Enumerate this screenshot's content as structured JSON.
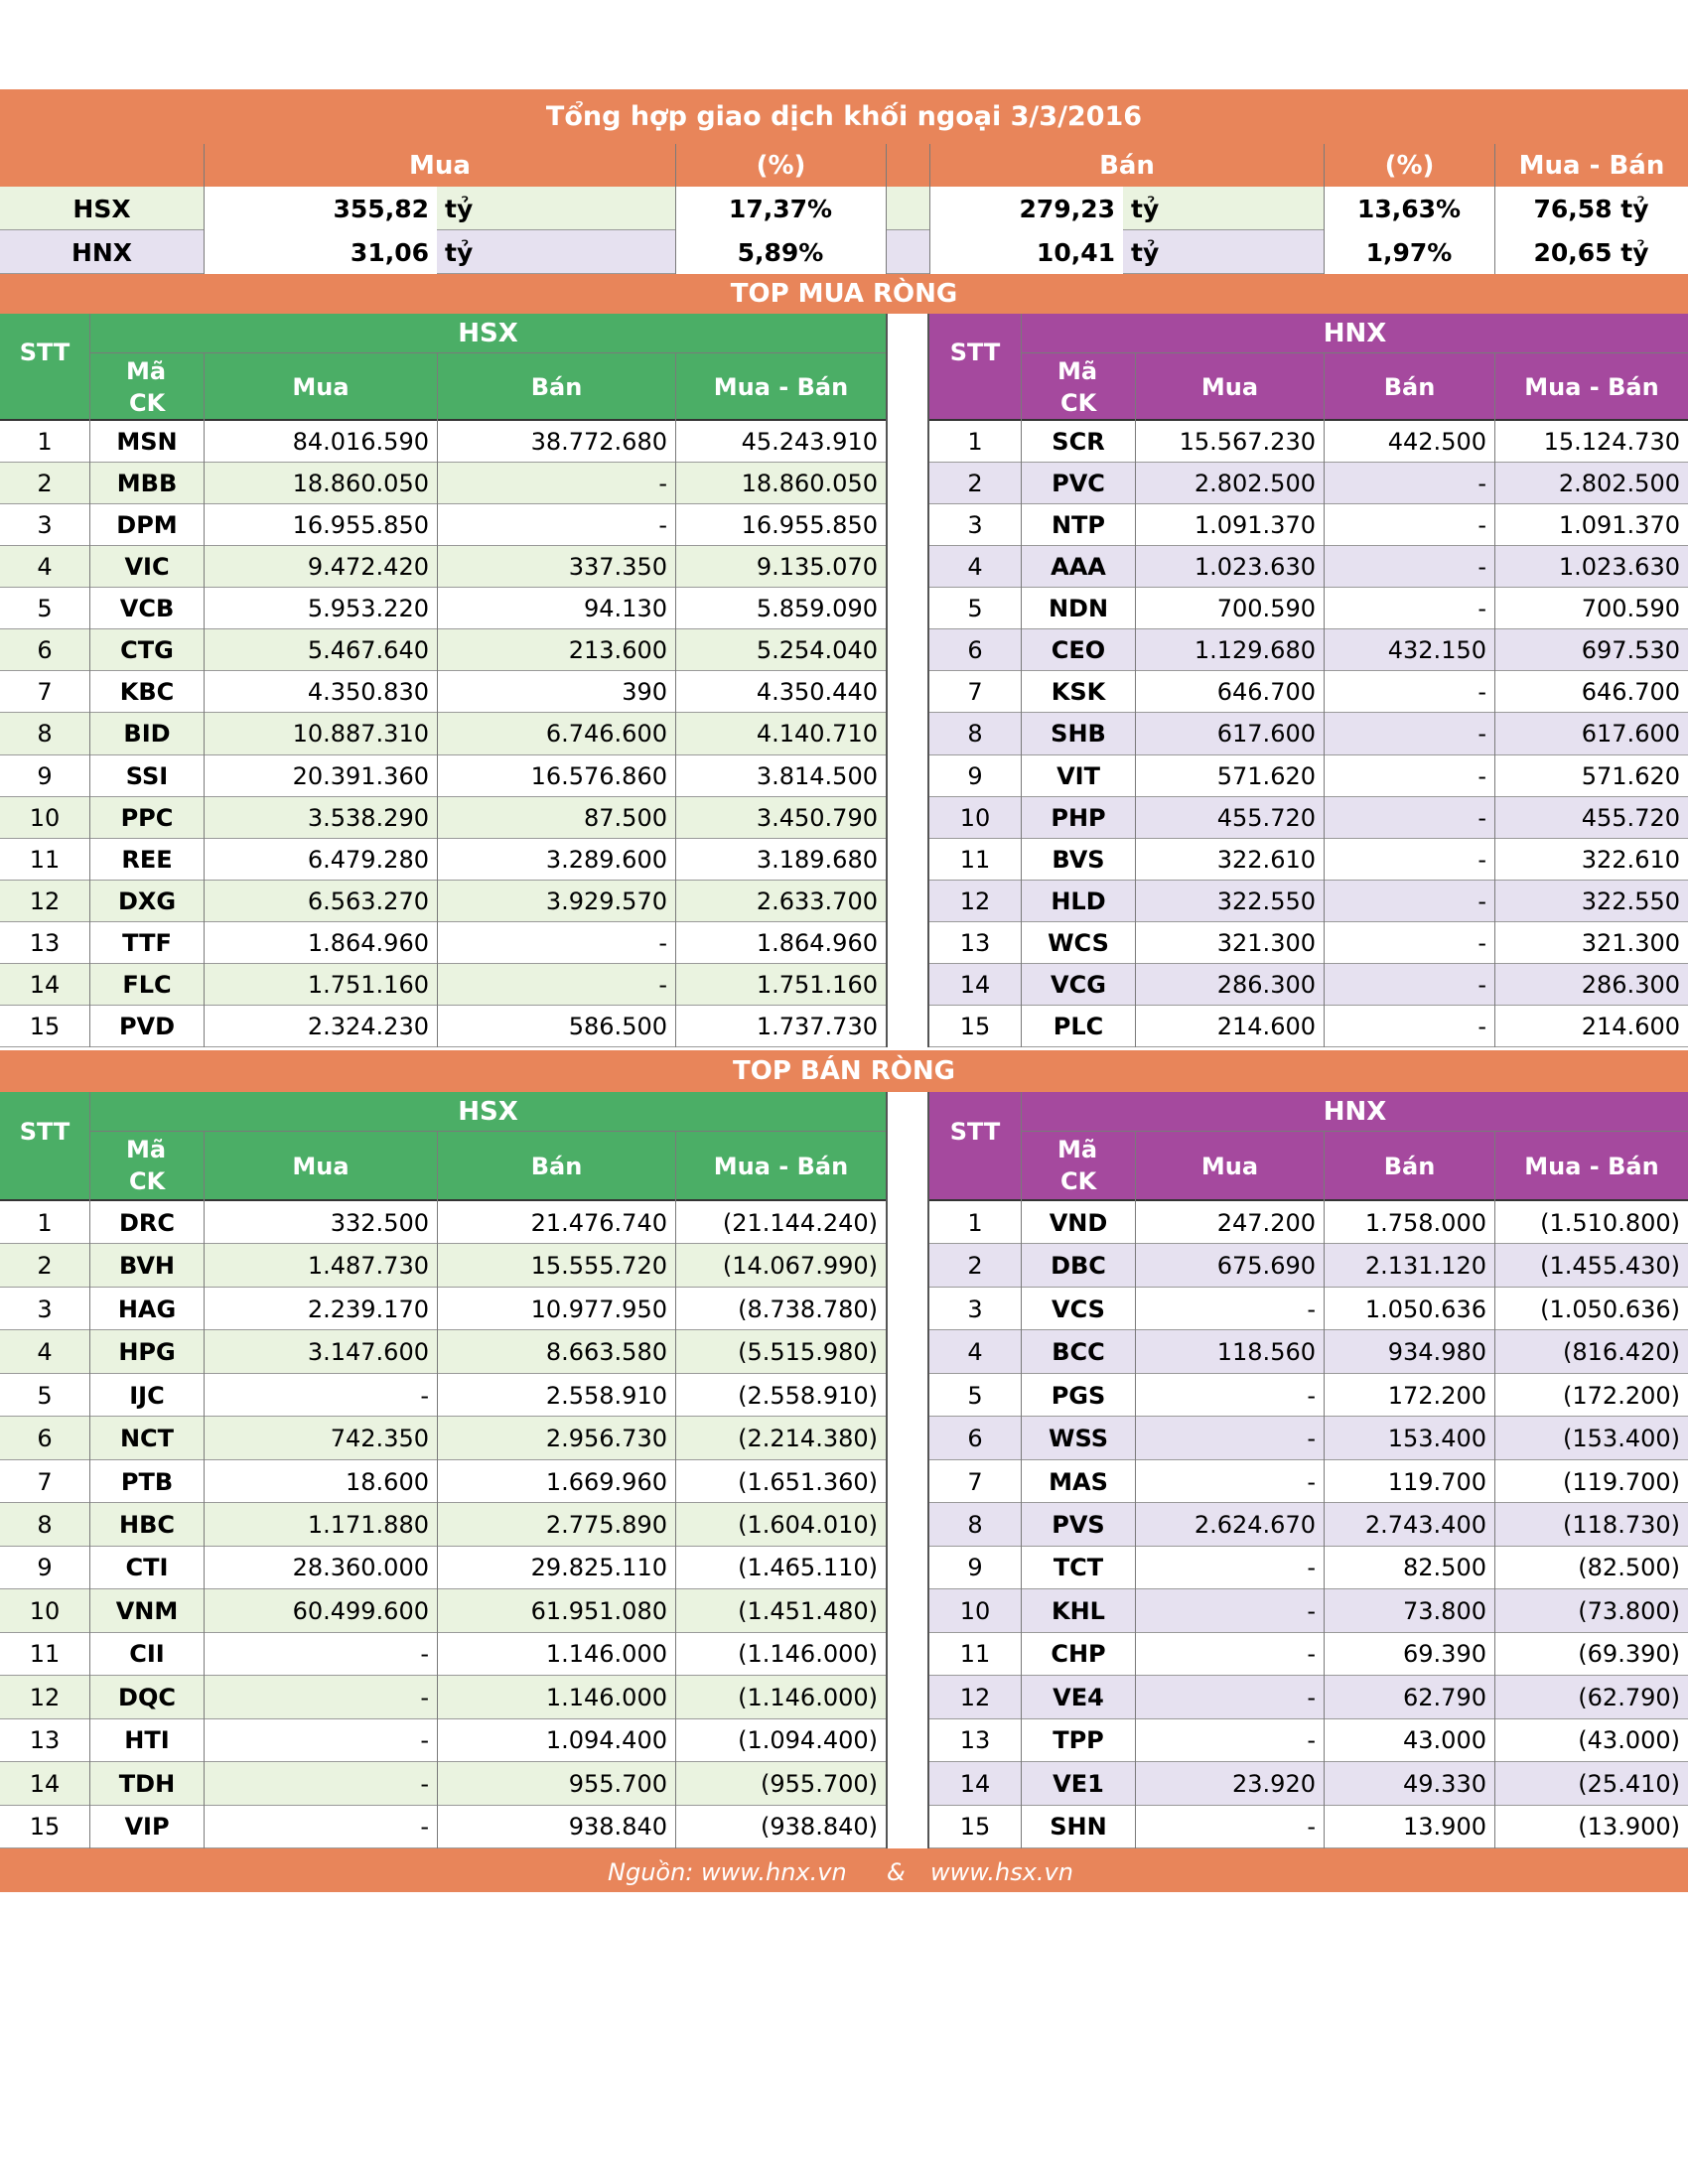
{
  "title": "Tổng hợp giao dịch khối ngoại 3/3/2016",
  "summary": {
    "headers": {
      "mua": "Mua",
      "pct1": "(%)",
      "ban": "Bán",
      "pct2": "(%)",
      "net": "Mua - Bán"
    },
    "unit": "tỷ",
    "rows": [
      {
        "exchange": "HSX",
        "mua": "355,82",
        "mua_pct": "17,37%",
        "ban": "279,23",
        "ban_pct": "13,63%",
        "net": "76,58 tỷ"
      },
      {
        "exchange": "HNX",
        "mua": "31,06",
        "mua_pct": "5,89%",
        "ban": "10,41",
        "ban_pct": "1,97%",
        "net": "20,65 tỷ"
      }
    ]
  },
  "columns": {
    "stt": "STT",
    "ma1": "Mã",
    "ma2": "CK",
    "mua": "Mua",
    "ban": "Bán",
    "net": "Mua - Bán",
    "hsx": "HSX",
    "hnx": "HNX"
  },
  "top_buy": {
    "title": "TOP MUA RÒNG",
    "hsx": [
      [
        "1",
        "MSN",
        "84.016.590",
        "38.772.680",
        "45.243.910"
      ],
      [
        "2",
        "MBB",
        "18.860.050",
        "-",
        "18.860.050"
      ],
      [
        "3",
        "DPM",
        "16.955.850",
        "-",
        "16.955.850"
      ],
      [
        "4",
        "VIC",
        "9.472.420",
        "337.350",
        "9.135.070"
      ],
      [
        "5",
        "VCB",
        "5.953.220",
        "94.130",
        "5.859.090"
      ],
      [
        "6",
        "CTG",
        "5.467.640",
        "213.600",
        "5.254.040"
      ],
      [
        "7",
        "KBC",
        "4.350.830",
        "390",
        "4.350.440"
      ],
      [
        "8",
        "BID",
        "10.887.310",
        "6.746.600",
        "4.140.710"
      ],
      [
        "9",
        "SSI",
        "20.391.360",
        "16.576.860",
        "3.814.500"
      ],
      [
        "10",
        "PPC",
        "3.538.290",
        "87.500",
        "3.450.790"
      ],
      [
        "11",
        "REE",
        "6.479.280",
        "3.289.600",
        "3.189.680"
      ],
      [
        "12",
        "DXG",
        "6.563.270",
        "3.929.570",
        "2.633.700"
      ],
      [
        "13",
        "TTF",
        "1.864.960",
        "-",
        "1.864.960"
      ],
      [
        "14",
        "FLC",
        "1.751.160",
        "-",
        "1.751.160"
      ],
      [
        "15",
        "PVD",
        "2.324.230",
        "586.500",
        "1.737.730"
      ]
    ],
    "hnx": [
      [
        "1",
        "SCR",
        "15.567.230",
        "442.500",
        "15.124.730"
      ],
      [
        "2",
        "PVC",
        "2.802.500",
        "-",
        "2.802.500"
      ],
      [
        "3",
        "NTP",
        "1.091.370",
        "-",
        "1.091.370"
      ],
      [
        "4",
        "AAA",
        "1.023.630",
        "-",
        "1.023.630"
      ],
      [
        "5",
        "NDN",
        "700.590",
        "-",
        "700.590"
      ],
      [
        "6",
        "CEO",
        "1.129.680",
        "432.150",
        "697.530"
      ],
      [
        "7",
        "KSK",
        "646.700",
        "-",
        "646.700"
      ],
      [
        "8",
        "SHB",
        "617.600",
        "-",
        "617.600"
      ],
      [
        "9",
        "VIT",
        "571.620",
        "-",
        "571.620"
      ],
      [
        "10",
        "PHP",
        "455.720",
        "-",
        "455.720"
      ],
      [
        "11",
        "BVS",
        "322.610",
        "-",
        "322.610"
      ],
      [
        "12",
        "HLD",
        "322.550",
        "-",
        "322.550"
      ],
      [
        "13",
        "WCS",
        "321.300",
        "-",
        "321.300"
      ],
      [
        "14",
        "VCG",
        "286.300",
        "-",
        "286.300"
      ],
      [
        "15",
        "PLC",
        "214.600",
        "-",
        "214.600"
      ]
    ]
  },
  "top_sell": {
    "title": "TOP BÁN RÒNG",
    "hsx": [
      [
        "1",
        "DRC",
        "332.500",
        "21.476.740",
        "(21.144.240)"
      ],
      [
        "2",
        "BVH",
        "1.487.730",
        "15.555.720",
        "(14.067.990)"
      ],
      [
        "3",
        "HAG",
        "2.239.170",
        "10.977.950",
        "(8.738.780)"
      ],
      [
        "4",
        "HPG",
        "3.147.600",
        "8.663.580",
        "(5.515.980)"
      ],
      [
        "5",
        "IJC",
        "-",
        "2.558.910",
        "(2.558.910)"
      ],
      [
        "6",
        "NCT",
        "742.350",
        "2.956.730",
        "(2.214.380)"
      ],
      [
        "7",
        "PTB",
        "18.600",
        "1.669.960",
        "(1.651.360)"
      ],
      [
        "8",
        "HBC",
        "1.171.880",
        "2.775.890",
        "(1.604.010)"
      ],
      [
        "9",
        "CTI",
        "28.360.000",
        "29.825.110",
        "(1.465.110)"
      ],
      [
        "10",
        "VNM",
        "60.499.600",
        "61.951.080",
        "(1.451.480)"
      ],
      [
        "11",
        "CII",
        "-",
        "1.146.000",
        "(1.146.000)"
      ],
      [
        "12",
        "DQC",
        "-",
        "1.146.000",
        "(1.146.000)"
      ],
      [
        "13",
        "HTI",
        "-",
        "1.094.400",
        "(1.094.400)"
      ],
      [
        "14",
        "TDH",
        "-",
        "955.700",
        "(955.700)"
      ],
      [
        "15",
        "VIP",
        "-",
        "938.840",
        "(938.840)"
      ]
    ],
    "hnx": [
      [
        "1",
        "VND",
        "247.200",
        "1.758.000",
        "(1.510.800)"
      ],
      [
        "2",
        "DBC",
        "675.690",
        "2.131.120",
        "(1.455.430)"
      ],
      [
        "3",
        "VCS",
        "-",
        "1.050.636",
        "(1.050.636)"
      ],
      [
        "4",
        "BCC",
        "118.560",
        "934.980",
        "(816.420)"
      ],
      [
        "5",
        "PGS",
        "-",
        "172.200",
        "(172.200)"
      ],
      [
        "6",
        "WSS",
        "-",
        "153.400",
        "(153.400)"
      ],
      [
        "7",
        "MAS",
        "-",
        "119.700",
        "(119.700)"
      ],
      [
        "8",
        "PVS",
        "2.624.670",
        "2.743.400",
        "(118.730)"
      ],
      [
        "9",
        "TCT",
        "-",
        "82.500",
        "(82.500)"
      ],
      [
        "10",
        "KHL",
        "-",
        "73.800",
        "(73.800)"
      ],
      [
        "11",
        "CHP",
        "-",
        "69.390",
        "(69.390)"
      ],
      [
        "12",
        "VE4",
        "-",
        "62.790",
        "(62.790)"
      ],
      [
        "13",
        "TPP",
        "-",
        "43.000",
        "(43.000)"
      ],
      [
        "14",
        "VE1",
        "23.920",
        "49.330",
        "(25.410)"
      ],
      [
        "15",
        "SHN",
        "-",
        "13.900",
        "(13.900)"
      ]
    ]
  },
  "source": {
    "a": "Nguồn: www.hnx.vn",
    "amp": "&",
    "b": "www.hsx.vn"
  }
}
